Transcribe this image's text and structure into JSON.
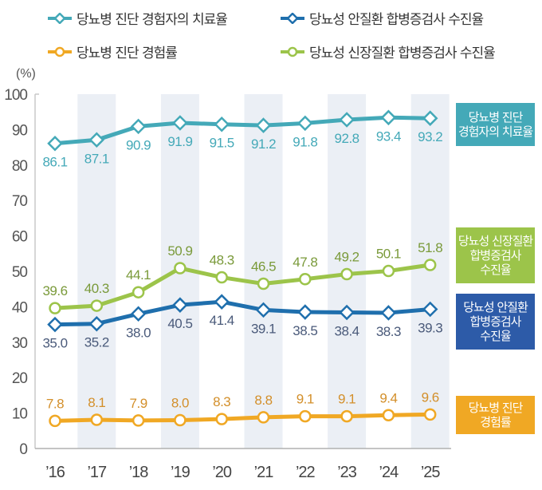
{
  "chart_data": {
    "type": "line",
    "title": "",
    "ylabel": "(%)",
    "xlabel": "",
    "ylim": [
      0,
      100
    ],
    "yticks": [
      0,
      10,
      20,
      30,
      40,
      50,
      60,
      70,
      80,
      90,
      100
    ],
    "categories": [
      "'16",
      "'17",
      "'18",
      "'19",
      "'20",
      "'21",
      "'22",
      "'23",
      "'24",
      "'25"
    ],
    "shaded_categories": [
      "'17",
      "'19",
      "'21",
      "'23",
      "'25"
    ],
    "legend_position": "top",
    "series": [
      {
        "name": "당뇨병 진단 경험자의 치료율",
        "side_label": "당뇨병 진단\n경험자의 치료율",
        "color": "#44a9b8",
        "marker": "diamond",
        "label_position": "below",
        "values": [
          86.1,
          87.1,
          90.9,
          91.9,
          91.5,
          91.2,
          91.8,
          92.8,
          93.4,
          93.2
        ]
      },
      {
        "name": "당뇨병 진단 경험률",
        "side_label": "당뇨병 진단\n경험률",
        "color": "#f0a824",
        "text_color": "#d38f2a",
        "marker": "circle",
        "label_position": "above",
        "values": [
          7.8,
          8.1,
          7.9,
          8.0,
          8.3,
          8.8,
          9.1,
          9.1,
          9.4,
          9.6
        ]
      },
      {
        "name": "당뇨성 안질환 합병증검사 수진율",
        "side_label": "당뇨성 안질환\n합병증검사\n수진율",
        "color": "#1f6fad",
        "box_color": "#2d5ba8",
        "text_color": "#4a5a7a",
        "marker": "diamond",
        "label_position": "below",
        "values": [
          35.0,
          35.2,
          38.0,
          40.5,
          41.4,
          39.1,
          38.5,
          38.4,
          38.3,
          39.3
        ]
      },
      {
        "name": "당뇨성 신장질환 합병증검사 수진율",
        "side_label": "당뇨성 신장질환\n합병증검사\n수진율",
        "color": "#9cc44a",
        "text_color": "#7a9a3a",
        "marker": "circle",
        "label_position": "above",
        "values": [
          39.6,
          40.3,
          44.1,
          50.9,
          48.3,
          46.5,
          47.8,
          49.2,
          50.1,
          51.8
        ]
      }
    ]
  }
}
